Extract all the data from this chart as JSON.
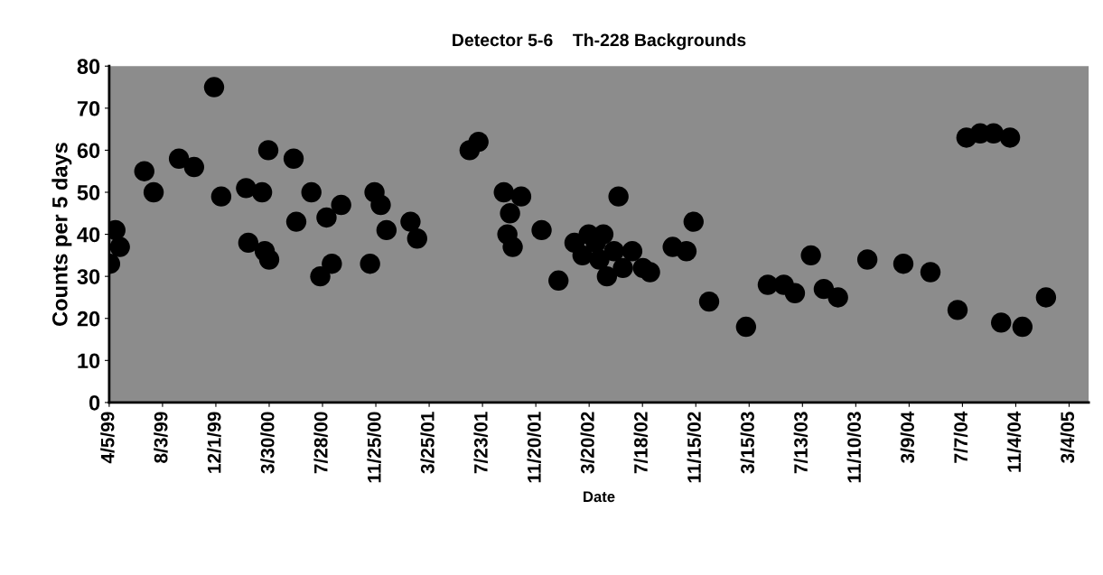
{
  "chart_data": {
    "type": "scatter",
    "title": "Detector 5-6    Th-228 Backgrounds",
    "xlabel": "Date",
    "ylabel": "Counts per 5 days",
    "x": [
      "1999-04-07",
      "1999-04-19",
      "1999-04-29",
      "1999-06-23",
      "1999-07-14",
      "1999-09-09",
      "1999-10-13",
      "1999-11-27",
      "1999-12-13",
      "2000-02-07",
      "2000-02-12",
      "2000-03-14",
      "2000-03-20",
      "2000-03-28",
      "2000-03-30",
      "2000-05-24",
      "2000-05-30",
      "2000-07-03",
      "2000-07-23",
      "2000-08-06",
      "2000-08-18",
      "2000-09-08",
      "2000-11-12",
      "2000-11-22",
      "2000-12-06",
      "2000-12-19",
      "2001-02-11",
      "2001-02-26",
      "2001-06-24",
      "2001-07-14",
      "2001-09-09",
      "2001-09-17",
      "2001-09-23",
      "2001-09-29",
      "2001-10-18",
      "2001-12-03",
      "2002-01-10",
      "2002-02-15",
      "2002-03-05",
      "2002-03-19",
      "2002-04-04",
      "2002-04-12",
      "2002-04-21",
      "2002-04-29",
      "2002-05-15",
      "2002-05-25",
      "2002-06-04",
      "2002-06-25",
      "2002-07-19",
      "2002-08-04",
      "2002-09-24",
      "2002-10-25",
      "2002-11-10",
      "2002-12-15",
      "2003-03-08",
      "2003-04-26",
      "2003-06-01",
      "2003-06-26",
      "2003-08-01",
      "2003-08-30",
      "2003-10-01",
      "2003-12-06",
      "2004-02-25",
      "2004-04-26",
      "2004-06-26",
      "2004-07-16",
      "2004-08-16",
      "2004-09-15",
      "2004-10-02",
      "2004-10-22",
      "2004-11-19",
      "2005-01-11"
    ],
    "values": [
      33,
      41,
      37,
      55,
      50,
      58,
      56,
      75,
      49,
      51,
      38,
      50,
      36,
      60,
      34,
      58,
      43,
      50,
      30,
      44,
      33,
      47,
      33,
      50,
      47,
      41,
      43,
      39,
      60,
      62,
      50,
      40,
      45,
      37,
      49,
      41,
      29,
      38,
      35,
      40,
      38,
      34,
      40,
      30,
      36,
      49,
      32,
      36,
      32,
      31,
      37,
      36,
      43,
      24,
      18,
      28,
      28,
      26,
      35,
      27,
      25,
      34,
      33,
      31,
      22,
      63,
      64,
      64,
      19,
      63,
      18,
      25
    ],
    "color": "#000000",
    "marker": "circle",
    "grid": false,
    "legend": false,
    "xlim": [
      "1999-04-05",
      "2005-04-17"
    ],
    "xticks": [
      {
        "value": "1999-04-05",
        "label": "4/5/99"
      },
      {
        "value": "1999-08-03",
        "label": "8/3/99"
      },
      {
        "value": "1999-12-01",
        "label": "12/1/99"
      },
      {
        "value": "2000-03-30",
        "label": "3/30/00"
      },
      {
        "value": "2000-07-28",
        "label": "7/28/00"
      },
      {
        "value": "2000-11-25",
        "label": "11/25/00"
      },
      {
        "value": "2001-03-25",
        "label": "3/25/01"
      },
      {
        "value": "2001-07-23",
        "label": "7/23/01"
      },
      {
        "value": "2001-11-20",
        "label": "11/20/01"
      },
      {
        "value": "2002-03-20",
        "label": "3/20/02"
      },
      {
        "value": "2002-07-18",
        "label": "7/18/02"
      },
      {
        "value": "2002-11-15",
        "label": "11/15/02"
      },
      {
        "value": "2003-03-15",
        "label": "3/15/03"
      },
      {
        "value": "2003-07-13",
        "label": "7/13/03"
      },
      {
        "value": "2003-11-10",
        "label": "11/10/03"
      },
      {
        "value": "2004-03-09",
        "label": "3/9/04"
      },
      {
        "value": "2004-07-07",
        "label": "7/7/04"
      },
      {
        "value": "2004-11-04",
        "label": "11/4/04"
      },
      {
        "value": "2005-03-04",
        "label": "3/4/05"
      }
    ],
    "ylim": [
      0,
      80
    ],
    "yticks": [
      0,
      10,
      20,
      30,
      40,
      50,
      60,
      70,
      80
    ]
  }
}
